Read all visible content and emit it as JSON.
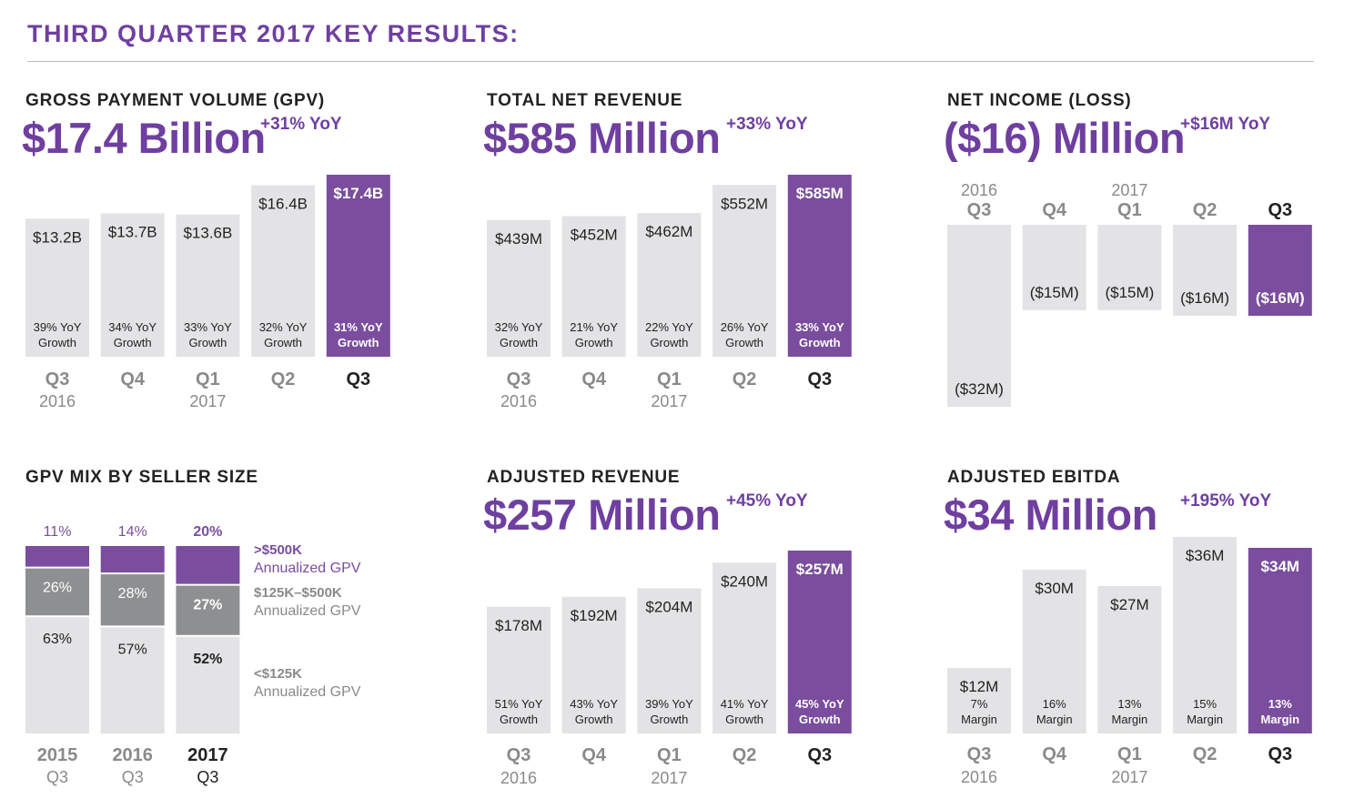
{
  "page": {
    "title": "THIRD QUARTER 2017 KEY RESULTS:"
  },
  "colors": {
    "accent": "#7a4d9e",
    "bar": "#e3e3e5",
    "mid": "#8e8f91",
    "text_dark": "#222222",
    "label_gray": "#8a8a8a"
  },
  "panels": {
    "gpv": {
      "title": "GROSS PAYMENT VOLUME (GPV)",
      "headline": "$17.4 Billion",
      "yoy": "+31% YoY"
    },
    "revenue": {
      "title": "TOTAL NET REVENUE",
      "headline": "$585 Million",
      "yoy": "+33% YoY"
    },
    "net_income": {
      "title": "NET INCOME (LOSS)",
      "headline": "($16) Million",
      "yoy": "+$16M YoY"
    },
    "mix": {
      "title": "GPV MIX BY SELLER SIZE"
    },
    "adj_revenue": {
      "title": "ADJUSTED REVENUE",
      "headline": "$257 Million",
      "yoy": "+45% YoY"
    },
    "ebitda": {
      "title": "ADJUSTED EBITDA",
      "headline": "$34 Million",
      "yoy": "+195% YoY"
    }
  },
  "chart_data": [
    {
      "id": "gpv",
      "type": "bar",
      "categories": [
        "Q3 2016",
        "Q4",
        "Q1 2017",
        "Q2",
        "Q3"
      ],
      "x_top": [
        "Q3",
        "Q4",
        "Q1",
        "Q2",
        "Q3"
      ],
      "x_bottom": [
        "2016",
        "",
        "2017",
        "",
        ""
      ],
      "values": [
        13.2,
        13.7,
        13.6,
        16.4,
        17.4
      ],
      "value_labels": [
        "$13.2B",
        "$13.7B",
        "$13.6B",
        "$16.4B",
        "$17.4B"
      ],
      "sub_labels": [
        [
          "39% YoY",
          "Growth"
        ],
        [
          "34% YoY",
          "Growth"
        ],
        [
          "33% YoY",
          "Growth"
        ],
        [
          "32% YoY",
          "Growth"
        ],
        [
          "31% YoY",
          "Growth"
        ]
      ],
      "highlight_index": 4,
      "ylim": [
        0,
        17.4
      ]
    },
    {
      "id": "revenue",
      "type": "bar",
      "categories": [
        "Q3 2016",
        "Q4",
        "Q1 2017",
        "Q2",
        "Q3"
      ],
      "x_top": [
        "Q3",
        "Q4",
        "Q1",
        "Q2",
        "Q3"
      ],
      "x_bottom": [
        "2016",
        "",
        "2017",
        "",
        ""
      ],
      "values": [
        439,
        452,
        462,
        552,
        585
      ],
      "value_labels": [
        "$439M",
        "$452M",
        "$462M",
        "$552M",
        "$585M"
      ],
      "sub_labels": [
        [
          "32% YoY",
          "Growth"
        ],
        [
          "21% YoY",
          "Growth"
        ],
        [
          "22% YoY",
          "Growth"
        ],
        [
          "26% YoY",
          "Growth"
        ],
        [
          "33% YoY",
          "Growth"
        ]
      ],
      "highlight_index": 4,
      "ylim": [
        0,
        585
      ]
    },
    {
      "id": "net_income",
      "type": "bar",
      "categories": [
        "Q3 2016",
        "Q4",
        "Q1 2017",
        "Q2",
        "Q3"
      ],
      "x_top": [
        "Q3",
        "Q4",
        "Q1",
        "Q2",
        "Q3"
      ],
      "x_year": [
        "2016",
        "",
        "2017",
        "",
        ""
      ],
      "values": [
        -32,
        -15,
        -15,
        -16,
        -16
      ],
      "value_labels": [
        "($32M)",
        "($15M)",
        "($15M)",
        "($16M)",
        "($16M)"
      ],
      "highlight_index": 4,
      "ylim": [
        -32,
        0
      ]
    },
    {
      "id": "mix",
      "type": "bar",
      "stacked": true,
      "categories": [
        "2015 Q3",
        "2016 Q3",
        "2017 Q3"
      ],
      "x_top": [
        "2015",
        "2016",
        "2017"
      ],
      "x_bottom": [
        "Q3",
        "Q3",
        "Q3"
      ],
      "series": [
        {
          "name": ">$500K Annualized GPV",
          "values": [
            11,
            14,
            20
          ],
          "labels": [
            "11%",
            "14%",
            "20%"
          ]
        },
        {
          "name": "$125K–$500K Annualized GPV",
          "values": [
            26,
            28,
            27
          ],
          "labels": [
            "26%",
            "28%",
            "27%"
          ]
        },
        {
          "name": "<$125K Annualized GPV",
          "values": [
            63,
            57,
            52
          ],
          "labels": [
            "63%",
            "57%",
            "52%"
          ]
        }
      ],
      "legend": [
        {
          "line1": ">$500K",
          "line2": "Annualized GPV"
        },
        {
          "line1": "$125K–$500K",
          "line2": "Annualized GPV"
        },
        {
          "line1": "<$125K",
          "line2": "Annualized GPV"
        }
      ],
      "highlight_index": 2
    },
    {
      "id": "adj_revenue",
      "type": "bar",
      "categories": [
        "Q3 2016",
        "Q4",
        "Q1 2017",
        "Q2",
        "Q3"
      ],
      "x_top": [
        "Q3",
        "Q4",
        "Q1",
        "Q2",
        "Q3"
      ],
      "x_bottom": [
        "2016",
        "",
        "2017",
        "",
        ""
      ],
      "values": [
        178,
        192,
        204,
        240,
        257
      ],
      "value_labels": [
        "$178M",
        "$192M",
        "$204M",
        "$240M",
        "$257M"
      ],
      "sub_labels": [
        [
          "51% YoY",
          "Growth"
        ],
        [
          "43% YoY",
          "Growth"
        ],
        [
          "39% YoY",
          "Growth"
        ],
        [
          "41% YoY",
          "Growth"
        ],
        [
          "45% YoY",
          "Growth"
        ]
      ],
      "highlight_index": 4,
      "ylim": [
        0,
        257
      ]
    },
    {
      "id": "ebitda",
      "type": "bar",
      "categories": [
        "Q3 2016",
        "Q4",
        "Q1 2017",
        "Q2",
        "Q3"
      ],
      "x_top": [
        "Q3",
        "Q4",
        "Q1",
        "Q2",
        "Q3"
      ],
      "x_bottom": [
        "2016",
        "",
        "2017",
        "",
        ""
      ],
      "values": [
        12,
        30,
        27,
        36,
        34
      ],
      "value_labels": [
        "$12M",
        "$30M",
        "$27M",
        "$36M",
        "$34M"
      ],
      "sub_labels": [
        [
          "7%",
          "Margin"
        ],
        [
          "16%",
          "Margin"
        ],
        [
          "13%",
          "Margin"
        ],
        [
          "15%",
          "Margin"
        ],
        [
          "13%",
          "Margin"
        ]
      ],
      "highlight_index": 4,
      "ylim": [
        0,
        36
      ]
    }
  ]
}
